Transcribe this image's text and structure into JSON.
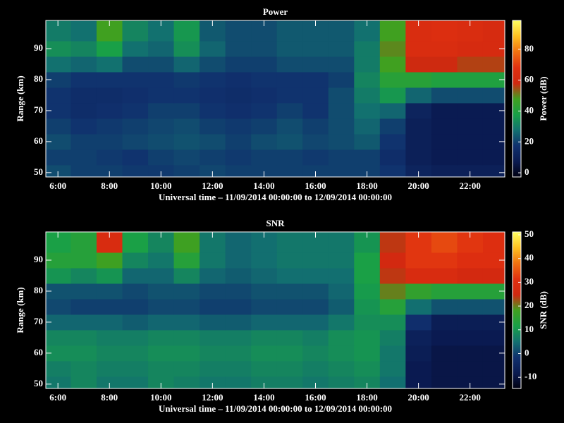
{
  "chart_data": [
    {
      "type": "heatmap",
      "title": "Power",
      "ylabel": "Range (km)",
      "xlabel": "Universal time – 11/09/2014 00:00:00 to 12/09/2014 00:00:00",
      "x": [
        6,
        7,
        8,
        9,
        10,
        11,
        12,
        13,
        14,
        15,
        16,
        17,
        18,
        19,
        20,
        21,
        22,
        23
      ],
      "y": [
        50,
        55,
        60,
        65,
        70,
        75,
        80,
        85,
        90,
        95
      ],
      "values": [
        [
          22,
          20,
          20,
          19,
          19,
          20,
          21,
          20,
          20,
          20,
          20,
          20,
          20,
          18,
          12,
          10,
          10,
          10
        ],
        [
          20,
          20,
          19,
          18,
          20,
          21,
          20,
          19,
          20,
          20,
          19,
          20,
          20,
          16,
          10,
          8,
          8,
          8
        ],
        [
          22,
          20,
          20,
          21,
          22,
          23,
          22,
          20,
          22,
          23,
          21,
          22,
          24,
          18,
          10,
          8,
          8,
          8
        ],
        [
          20,
          18,
          19,
          20,
          21,
          22,
          20,
          19,
          20,
          22,
          20,
          22,
          26,
          20,
          10,
          8,
          8,
          8
        ],
        [
          18,
          16,
          17,
          18,
          20,
          20,
          18,
          17,
          18,
          20,
          18,
          22,
          28,
          26,
          12,
          8,
          8,
          8
        ],
        [
          18,
          16,
          16,
          17,
          18,
          18,
          17,
          16,
          17,
          18,
          18,
          22,
          30,
          36,
          26,
          22,
          22,
          22
        ],
        [
          20,
          18,
          18,
          18,
          18,
          19,
          18,
          17,
          18,
          18,
          18,
          20,
          32,
          42,
          42,
          40,
          40,
          40
        ],
        [
          28,
          26,
          28,
          22,
          22,
          26,
          22,
          20,
          20,
          22,
          22,
          22,
          30,
          48,
          58,
          58,
          56,
          56
        ],
        [
          34,
          32,
          38,
          28,
          26,
          34,
          26,
          22,
          22,
          24,
          24,
          24,
          30,
          50,
          64,
          64,
          62,
          62
        ],
        [
          30,
          28,
          48,
          32,
          28,
          36,
          24,
          22,
          22,
          24,
          24,
          24,
          28,
          48,
          64,
          66,
          64,
          62
        ]
      ],
      "xlim": [
        5.53,
        23.35
      ],
      "ylim": [
        48.6,
        99.1
      ],
      "xticks": [
        {
          "value": 6,
          "label": "6:00"
        },
        {
          "value": 8,
          "label": "8:00"
        },
        {
          "value": 10,
          "label": "10:00"
        },
        {
          "value": 12,
          "label": "12:00"
        },
        {
          "value": 14,
          "label": "14:00"
        },
        {
          "value": 16,
          "label": "16:00"
        },
        {
          "value": 18,
          "label": "18:00"
        },
        {
          "value": 20,
          "label": "20:00"
        },
        {
          "value": 22,
          "label": "22:00"
        }
      ],
      "yticks": [
        50,
        60,
        70,
        80,
        90
      ],
      "colorbar": {
        "label": "Power (dB)",
        "lim": [
          -2.7,
          98.7
        ],
        "ticks": [
          0,
          20,
          40,
          60,
          80
        ]
      },
      "colormap": [
        "#000010",
        "#0a1a50",
        "#10306e",
        "#127070",
        "#18a048",
        "#40a020",
        "#d02810",
        "#e03010",
        "#f07010",
        "#ffc020",
        "#ffff60"
      ]
    },
    {
      "type": "heatmap",
      "title": "SNR",
      "ylabel": "Range (km)",
      "xlabel": "Universal time – 11/09/2014 00:00:00 to 12/09/2014 00:00:00",
      "x": [
        6,
        7,
        8,
        9,
        10,
        11,
        12,
        13,
        14,
        15,
        16,
        17,
        18,
        19,
        20,
        21,
        22,
        23
      ],
      "y": [
        50,
        55,
        60,
        65,
        70,
        75,
        80,
        85,
        90,
        95
      ],
      "values": [
        [
          6,
          8,
          6,
          6,
          8,
          7,
          6,
          6,
          7,
          7,
          6,
          7,
          8,
          5,
          -8,
          -9,
          -9,
          -9
        ],
        [
          7,
          8,
          7,
          7,
          8,
          8,
          7,
          7,
          8,
          8,
          7,
          8,
          9,
          6,
          -8,
          -9,
          -9,
          -9
        ],
        [
          9,
          9,
          8,
          8,
          9,
          9,
          8,
          8,
          9,
          9,
          8,
          9,
          10,
          6,
          -7,
          -9,
          -9,
          -9
        ],
        [
          8,
          8,
          7,
          7,
          8,
          8,
          7,
          7,
          8,
          8,
          7,
          9,
          10,
          7,
          -6,
          -8,
          -8,
          -8
        ],
        [
          4,
          4,
          4,
          3,
          4,
          4,
          3,
          3,
          4,
          4,
          4,
          6,
          9,
          9,
          -2,
          -7,
          -7,
          -7
        ],
        [
          1,
          0,
          0,
          0,
          1,
          1,
          0,
          0,
          1,
          1,
          1,
          3,
          10,
          14,
          5,
          2,
          2,
          2
        ],
        [
          2,
          2,
          2,
          1,
          2,
          2,
          1,
          1,
          2,
          2,
          2,
          4,
          11,
          20,
          16,
          14,
          14,
          14
        ],
        [
          10,
          8,
          10,
          4,
          4,
          8,
          4,
          3,
          4,
          5,
          5,
          5,
          12,
          24,
          28,
          28,
          26,
          26
        ],
        [
          14,
          14,
          18,
          8,
          6,
          14,
          6,
          4,
          5,
          6,
          6,
          6,
          12,
          26,
          32,
          32,
          30,
          30
        ],
        [
          12,
          14,
          28,
          12,
          8,
          18,
          6,
          4,
          5,
          6,
          6,
          6,
          10,
          24,
          32,
          34,
          32,
          30
        ]
      ],
      "xlim": [
        5.53,
        23.35
      ],
      "ylim": [
        48.6,
        99.1
      ],
      "xticks": [
        {
          "value": 6,
          "label": "6:00"
        },
        {
          "value": 8,
          "label": "8:00"
        },
        {
          "value": 10,
          "label": "10:00"
        },
        {
          "value": 12,
          "label": "12:00"
        },
        {
          "value": 14,
          "label": "14:00"
        },
        {
          "value": 16,
          "label": "16:00"
        },
        {
          "value": 18,
          "label": "18:00"
        },
        {
          "value": 20,
          "label": "20:00"
        },
        {
          "value": 22,
          "label": "22:00"
        }
      ],
      "yticks": [
        50,
        60,
        70,
        80,
        90
      ],
      "colorbar": {
        "label": "SNR (dB)",
        "lim": [
          -14.7,
          51.2
        ],
        "ticks": [
          -10,
          0,
          10,
          20,
          30,
          40,
          50
        ]
      },
      "colormap": [
        "#000010",
        "#0a1a50",
        "#10306e",
        "#127070",
        "#18a048",
        "#40a020",
        "#d02810",
        "#e03010",
        "#f07010",
        "#ffc020",
        "#ffff60"
      ]
    }
  ]
}
